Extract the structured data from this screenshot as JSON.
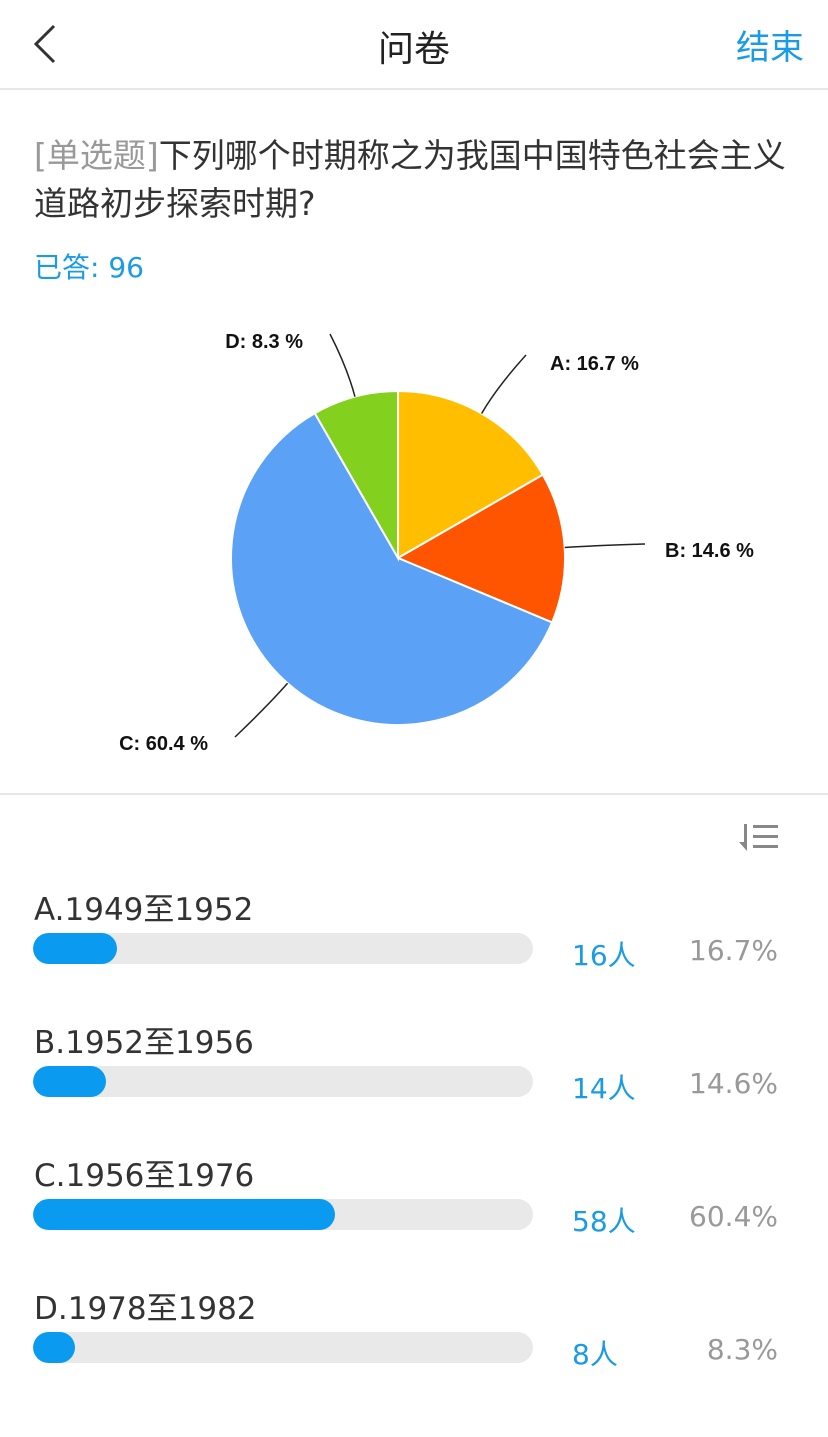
{
  "nav": {
    "title": "问卷",
    "end_label": "结束",
    "back_icon": "chevron-left-icon"
  },
  "question": {
    "tag": "[单选题]",
    "text": "下列哪个时期称之为我国中国特色社会主义道路初步探索时期?",
    "answered": "已答: 96"
  },
  "chart_data": {
    "type": "pie",
    "slices": [
      {
        "label": "A: 16.7 %",
        "value": 16.7,
        "color": "#FFBF00"
      },
      {
        "label": "B: 14.6 %",
        "value": 14.6,
        "color": "#FF5500"
      },
      {
        "label": "C: 60.4 %",
        "value": 60.4,
        "color": "#5BA2F6"
      },
      {
        "label": "D: 8.3 %",
        "value": 8.3,
        "color": "#84D01F"
      }
    ]
  },
  "sort_icon": "sort-list-icon",
  "options": [
    {
      "label": "A.1949至1952",
      "count": "16人",
      "percent": "16.7%",
      "value": 16.7
    },
    {
      "label": "B.1952至1956",
      "count": "14人",
      "percent": "14.6%",
      "value": 14.6
    },
    {
      "label": "C.1956至1976",
      "count": "58人",
      "percent": "60.4%",
      "value": 60.4
    },
    {
      "label": "D.1978至1982",
      "count": "8人",
      "percent": "8.3%",
      "value": 8.3
    }
  ],
  "colors": {
    "accent": "#1a9be6",
    "bar": "#0a9bf0"
  }
}
